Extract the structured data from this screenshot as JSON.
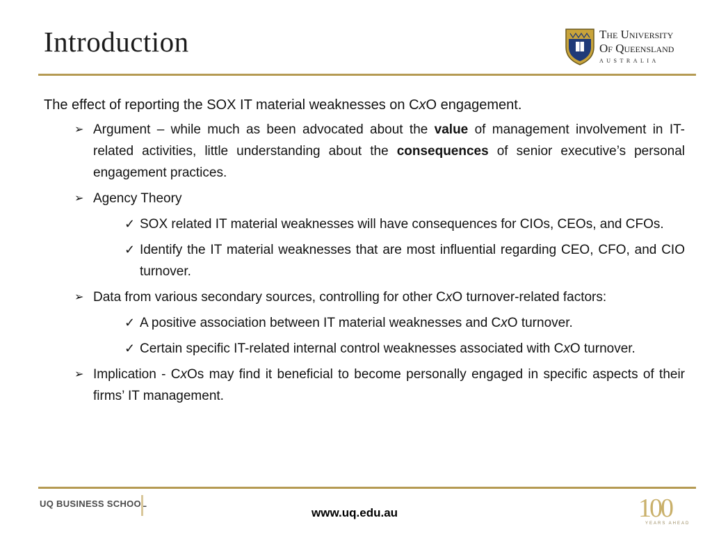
{
  "slide": {
    "title": "Introduction",
    "logo": {
      "line1": "The University",
      "line2": "Of Queensland",
      "line3": "AUSTRALIA",
      "crest_icon": "uq-crest-icon"
    },
    "lead": {
      "pre": "The effect of reporting the SOX IT material weaknesses on C",
      "x": "x",
      "post": "O engagement."
    },
    "bullets": [
      {
        "pre": "Argument – while much as been advocated about the ",
        "b1": "value",
        "mid": " of management involvement in IT-related activities, little understanding about the ",
        "b2": "consequences",
        "post": " of senior executive’s personal engagement practices."
      },
      {
        "text": "Agency Theory"
      },
      {
        "text": "SOX related IT material weaknesses will have consequences for CIOs, CEOs, and CFOs."
      },
      {
        "text": "Identify the IT material weaknesses that are most influential regarding CEO, CFO, and CIO turnover."
      },
      {
        "pre": "Data from various secondary sources, controlling for other C",
        "x": "x",
        "post": "O turnover-related factors:"
      },
      {
        "pre": "A positive association between IT material weaknesses and C",
        "x": "x",
        "post": "O turnover."
      },
      {
        "pre": "Certain specific IT-related internal control weaknesses associated with C",
        "x": "x",
        "post": "O turnover."
      },
      {
        "pre": "Implication - C",
        "x": "x",
        "post": "Os may find it beneficial to become personally engaged in specific aspects of their firms’ IT management."
      }
    ],
    "marks": {
      "arrow": "➢",
      "check": "✓"
    },
    "footer": {
      "school": "UQ BUSINESS SCHOOL",
      "url": "www.uq.edu.au",
      "anniversary_number": "100",
      "anniversary_text": "YEARS AHEAD"
    },
    "colors": {
      "rule": "#b59a52",
      "crest_blue": "#1f3a78",
      "crest_gold": "#c9a43a"
    }
  }
}
